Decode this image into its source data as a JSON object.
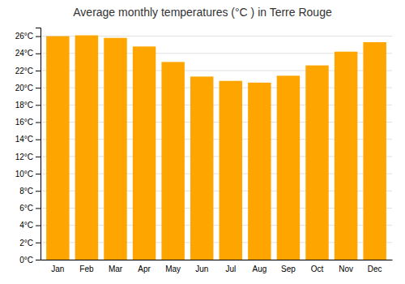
{
  "chart_data": {
    "type": "bar",
    "title": "Average monthly temperatures (°C ) in Terre Rouge",
    "categories": [
      "Jan",
      "Feb",
      "Mar",
      "Apr",
      "May",
      "Jun",
      "Jul",
      "Aug",
      "Sep",
      "Oct",
      "Nov",
      "Dec"
    ],
    "values": [
      26.0,
      26.1,
      25.8,
      24.8,
      23.0,
      21.3,
      20.8,
      20.6,
      21.4,
      22.6,
      24.2,
      25.3
    ],
    "color": "#FFA500",
    "ylim": [
      0,
      27
    ],
    "yticks": [
      {
        "value": 0,
        "label": "0°C"
      },
      {
        "value": 2,
        "label": "2°C"
      },
      {
        "value": 4,
        "label": "4°C"
      },
      {
        "value": 6,
        "label": "6°C"
      },
      {
        "value": 8,
        "label": "8°C"
      },
      {
        "value": 10,
        "label": "10°C"
      },
      {
        "value": 12,
        "label": "12°C"
      },
      {
        "value": 14,
        "label": "14°C"
      },
      {
        "value": 16,
        "label": "16°C"
      },
      {
        "value": 18,
        "label": "18°C"
      },
      {
        "value": 20,
        "label": "20°C"
      },
      {
        "value": 22,
        "label": "22°C"
      },
      {
        "value": 24,
        "label": "24°C"
      },
      {
        "value": 26,
        "label": "26°C"
      }
    ],
    "grid": true
  }
}
